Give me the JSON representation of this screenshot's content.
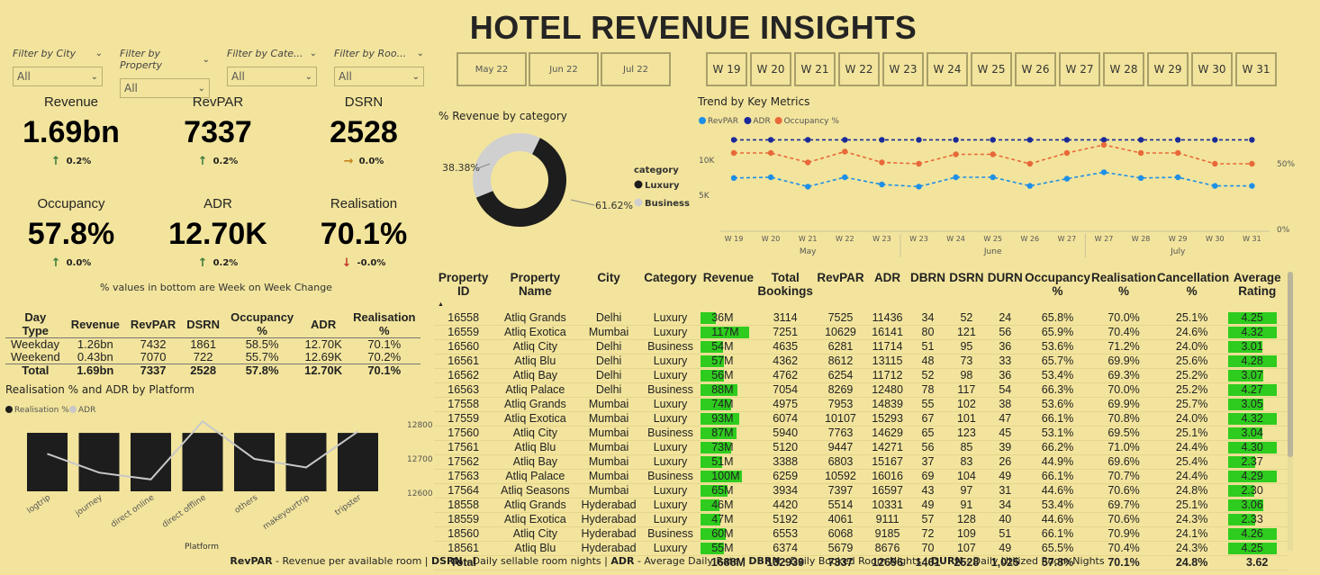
{
  "title": "HOTEL REVENUE INSIGHTS",
  "filters": [
    {
      "label": "Filter by City",
      "value": "All"
    },
    {
      "label": "Filter by Property",
      "value": "All"
    },
    {
      "label": "Filter by Cate...",
      "value": "All"
    },
    {
      "label": "Filter by Roo...",
      "value": "All"
    }
  ],
  "kpis": [
    {
      "label": "Revenue",
      "value": "1.69bn",
      "change": "0.2%",
      "dir": "up"
    },
    {
      "label": "RevPAR",
      "value": "7337",
      "change": "0.2%",
      "dir": "up"
    },
    {
      "label": "DSRN",
      "value": "2528",
      "change": "0.0%",
      "dir": "flat"
    },
    {
      "label": "Occupancy",
      "value": "57.8%",
      "change": "0.0%",
      "dir": "up"
    },
    {
      "label": "ADR",
      "value": "12.70K",
      "change": "0.2%",
      "dir": "up"
    },
    {
      "label": "Realisation",
      "value": "70.1%",
      "change": "-0.0%",
      "dir": "down"
    }
  ],
  "kpi_note": "% values in bottom are Week on Week Change",
  "daytype": {
    "headers": [
      "Day Type",
      "Revenue",
      "RevPAR",
      "DSRN",
      "Occupancy %",
      "ADR",
      "Realisation %"
    ],
    "rows": [
      [
        "Weekday",
        "1.26bn",
        "7432",
        "1861",
        "58.5%",
        "12.70K",
        "70.1%"
      ],
      [
        "Weekend",
        "0.43bn",
        "7070",
        "722",
        "55.7%",
        "12.69K",
        "70.2%"
      ]
    ],
    "total": [
      "Total",
      "1.69bn",
      "7337",
      "2528",
      "57.8%",
      "12.70K",
      "70.1%"
    ]
  },
  "months": [
    "May 22",
    "Jun 22",
    "Jul 22"
  ],
  "weeks": [
    "W 19",
    "W 20",
    "W 21",
    "W 22",
    "W 23",
    "W 24",
    "W 25",
    "W 26",
    "W 27",
    "W 28",
    "W 29",
    "W 30",
    "W 31"
  ],
  "donut": {
    "title": "% Revenue by category",
    "legend_title": "category",
    "slices": [
      {
        "name": "Luxury",
        "pct": "61.62%",
        "value": 61.62,
        "color": "#1d1d1d"
      },
      {
        "name": "Business",
        "pct": "38.38%",
        "value": 38.38,
        "color": "#d0d0d0"
      }
    ]
  },
  "chart_data": [
    {
      "type": "line",
      "title": "Trend by Key Metrics",
      "legend": [
        "RevPAR",
        "ADR",
        "Occupancy %"
      ],
      "x": [
        "W 19",
        "W 20",
        "W 21",
        "W 22",
        "W 23",
        "W 23",
        "W 24",
        "W 25",
        "W 26",
        "W 27",
        "W 27",
        "W 28",
        "W 29",
        "W 30",
        "W 31"
      ],
      "x_groups": [
        {
          "label": "May",
          "span": [
            0,
            4
          ]
        },
        {
          "label": "June",
          "span": [
            5,
            9
          ]
        },
        {
          "label": "July",
          "span": [
            10,
            14
          ]
        }
      ],
      "y_ticks_left": [
        "10K",
        "5K"
      ],
      "y_ticks_right": [
        "50%",
        "0%"
      ],
      "series": [
        {
          "name": "RevPAR",
          "color": "#1e8fe6",
          "values": [
            7400,
            7500,
            6200,
            7500,
            6500,
            6200,
            7500,
            7500,
            6300,
            7300,
            8200,
            7400,
            7500,
            6300,
            6300
          ]
        },
        {
          "name": "ADR",
          "color": "#1a2a9a",
          "values": [
            12700,
            12700,
            12700,
            12700,
            12700,
            12700,
            12700,
            12700,
            12700,
            12700,
            12700,
            12700,
            12700,
            12700,
            12700
          ]
        },
        {
          "name": "Occupancy %",
          "color": "#e8683a",
          "values": [
            58,
            58,
            51,
            59,
            51,
            50,
            57,
            57,
            50,
            58,
            64,
            58,
            58,
            50,
            50
          ]
        }
      ]
    },
    {
      "type": "bar",
      "title": "Realisation % and ADR by Platform",
      "xlabel": "Platform",
      "legend": [
        "Realisation %",
        "ADR"
      ],
      "categories": [
        "logtrip",
        "journey",
        "direct online",
        "direct offline",
        "others",
        "makeyourtrip",
        "tripster"
      ],
      "series": [
        {
          "name": "Realisation %",
          "color": "#1d1d1d",
          "values": [
            70.2,
            70.1,
            70.1,
            70.1,
            70.1,
            70.1,
            70.1
          ]
        },
        {
          "name": "ADR",
          "color": "#c8c8c8",
          "values": [
            12715,
            12660,
            12640,
            12810,
            12700,
            12675,
            12780
          ]
        }
      ],
      "y2_ticks": [
        "12800",
        "12700",
        "12600"
      ]
    }
  ],
  "props": {
    "headers": [
      "Property ID",
      "Property Name",
      "City",
      "Category",
      "Revenue",
      "Total Bookings",
      "RevPAR",
      "ADR",
      "DBRN",
      "DSRN",
      "DURN",
      "Occupancy %",
      "Realisation %",
      "Cancellation %",
      "Average Rating"
    ],
    "rows": [
      [
        "16558",
        "Atliq Grands",
        "Delhi",
        "Luxury",
        "36M",
        "3114",
        "7525",
        "11436",
        "34",
        "52",
        "24",
        "65.8%",
        "70.0%",
        "25.1%",
        "4.25"
      ],
      [
        "16559",
        "Atliq Exotica",
        "Mumbai",
        "Luxury",
        "117M",
        "7251",
        "10629",
        "16141",
        "80",
        "121",
        "56",
        "65.9%",
        "70.4%",
        "24.6%",
        "4.32"
      ],
      [
        "16560",
        "Atliq City",
        "Delhi",
        "Business",
        "54M",
        "4635",
        "6281",
        "11714",
        "51",
        "95",
        "36",
        "53.6%",
        "71.2%",
        "24.0%",
        "3.01"
      ],
      [
        "16561",
        "Atliq Blu",
        "Delhi",
        "Luxury",
        "57M",
        "4362",
        "8612",
        "13115",
        "48",
        "73",
        "33",
        "65.7%",
        "69.9%",
        "25.6%",
        "4.28"
      ],
      [
        "16562",
        "Atliq Bay",
        "Delhi",
        "Luxury",
        "56M",
        "4762",
        "6254",
        "11712",
        "52",
        "98",
        "36",
        "53.4%",
        "69.3%",
        "25.2%",
        "3.07"
      ],
      [
        "16563",
        "Atliq Palace",
        "Delhi",
        "Business",
        "88M",
        "7054",
        "8269",
        "12480",
        "78",
        "117",
        "54",
        "66.3%",
        "70.0%",
        "25.2%",
        "4.27"
      ],
      [
        "17558",
        "Atliq Grands",
        "Mumbai",
        "Luxury",
        "74M",
        "4975",
        "7953",
        "14839",
        "55",
        "102",
        "38",
        "53.6%",
        "69.9%",
        "25.7%",
        "3.05"
      ],
      [
        "17559",
        "Atliq Exotica",
        "Mumbai",
        "Luxury",
        "93M",
        "6074",
        "10107",
        "15293",
        "67",
        "101",
        "47",
        "66.1%",
        "70.8%",
        "24.0%",
        "4.32"
      ],
      [
        "17560",
        "Atliq City",
        "Mumbai",
        "Business",
        "87M",
        "5940",
        "7763",
        "14629",
        "65",
        "123",
        "45",
        "53.1%",
        "69.5%",
        "25.1%",
        "3.04"
      ],
      [
        "17561",
        "Atliq Blu",
        "Mumbai",
        "Luxury",
        "73M",
        "5120",
        "9447",
        "14271",
        "56",
        "85",
        "39",
        "66.2%",
        "71.0%",
        "24.4%",
        "4.30"
      ],
      [
        "17562",
        "Atliq Bay",
        "Mumbai",
        "Luxury",
        "51M",
        "3388",
        "6803",
        "15167",
        "37",
        "83",
        "26",
        "44.9%",
        "69.6%",
        "25.4%",
        "2.37"
      ],
      [
        "17563",
        "Atliq Palace",
        "Mumbai",
        "Business",
        "100M",
        "6259",
        "10592",
        "16016",
        "69",
        "104",
        "49",
        "66.1%",
        "70.7%",
        "24.4%",
        "4.29"
      ],
      [
        "17564",
        "Atliq Seasons",
        "Mumbai",
        "Luxury",
        "65M",
        "3934",
        "7397",
        "16597",
        "43",
        "97",
        "31",
        "44.6%",
        "70.6%",
        "24.8%",
        "2.30"
      ],
      [
        "18558",
        "Atliq Grands",
        "Hyderabad",
        "Luxury",
        "46M",
        "4420",
        "5514",
        "10331",
        "49",
        "91",
        "34",
        "53.4%",
        "69.7%",
        "25.1%",
        "3.06"
      ],
      [
        "18559",
        "Atliq Exotica",
        "Hyderabad",
        "Luxury",
        "47M",
        "5192",
        "4061",
        "9111",
        "57",
        "128",
        "40",
        "44.6%",
        "70.6%",
        "24.3%",
        "2.33"
      ],
      [
        "18560",
        "Atliq City",
        "Hyderabad",
        "Business",
        "60M",
        "6553",
        "6068",
        "9185",
        "72",
        "109",
        "51",
        "66.1%",
        "70.9%",
        "24.1%",
        "4.26"
      ],
      [
        "18561",
        "Atliq Blu",
        "Hyderabad",
        "Luxury",
        "55M",
        "6374",
        "5679",
        "8676",
        "70",
        "107",
        "49",
        "65.5%",
        "70.4%",
        "24.3%",
        "4.25"
      ]
    ],
    "rev_values": [
      36,
      117,
      54,
      57,
      56,
      88,
      74,
      93,
      87,
      73,
      51,
      100,
      65,
      46,
      47,
      60,
      55
    ],
    "rating_values": [
      4.25,
      4.32,
      3.01,
      4.28,
      3.07,
      4.27,
      3.05,
      4.32,
      3.04,
      4.3,
      2.37,
      4.29,
      2.3,
      3.06,
      2.33,
      4.26,
      4.25
    ],
    "total": [
      "Total",
      "",
      "",
      "",
      "1688M",
      "132939",
      "7337",
      "12696",
      "1461",
      "2528",
      "1,025",
      "57.8%",
      "70.1%",
      "24.8%",
      "3.62"
    ]
  },
  "footer": [
    {
      "term": "RevPAR",
      "desc": " - Revenue per available room | "
    },
    {
      "term": "DSRN",
      "desc": " - Daily sellable room nights | "
    },
    {
      "term": "ADR",
      "desc": " - Average Daily Rate | "
    },
    {
      "term": "DBRN",
      "desc": " - Daily Booked Room Nights | "
    },
    {
      "term": "DURN",
      "desc": " - Daily Utilized Room Nights"
    }
  ]
}
